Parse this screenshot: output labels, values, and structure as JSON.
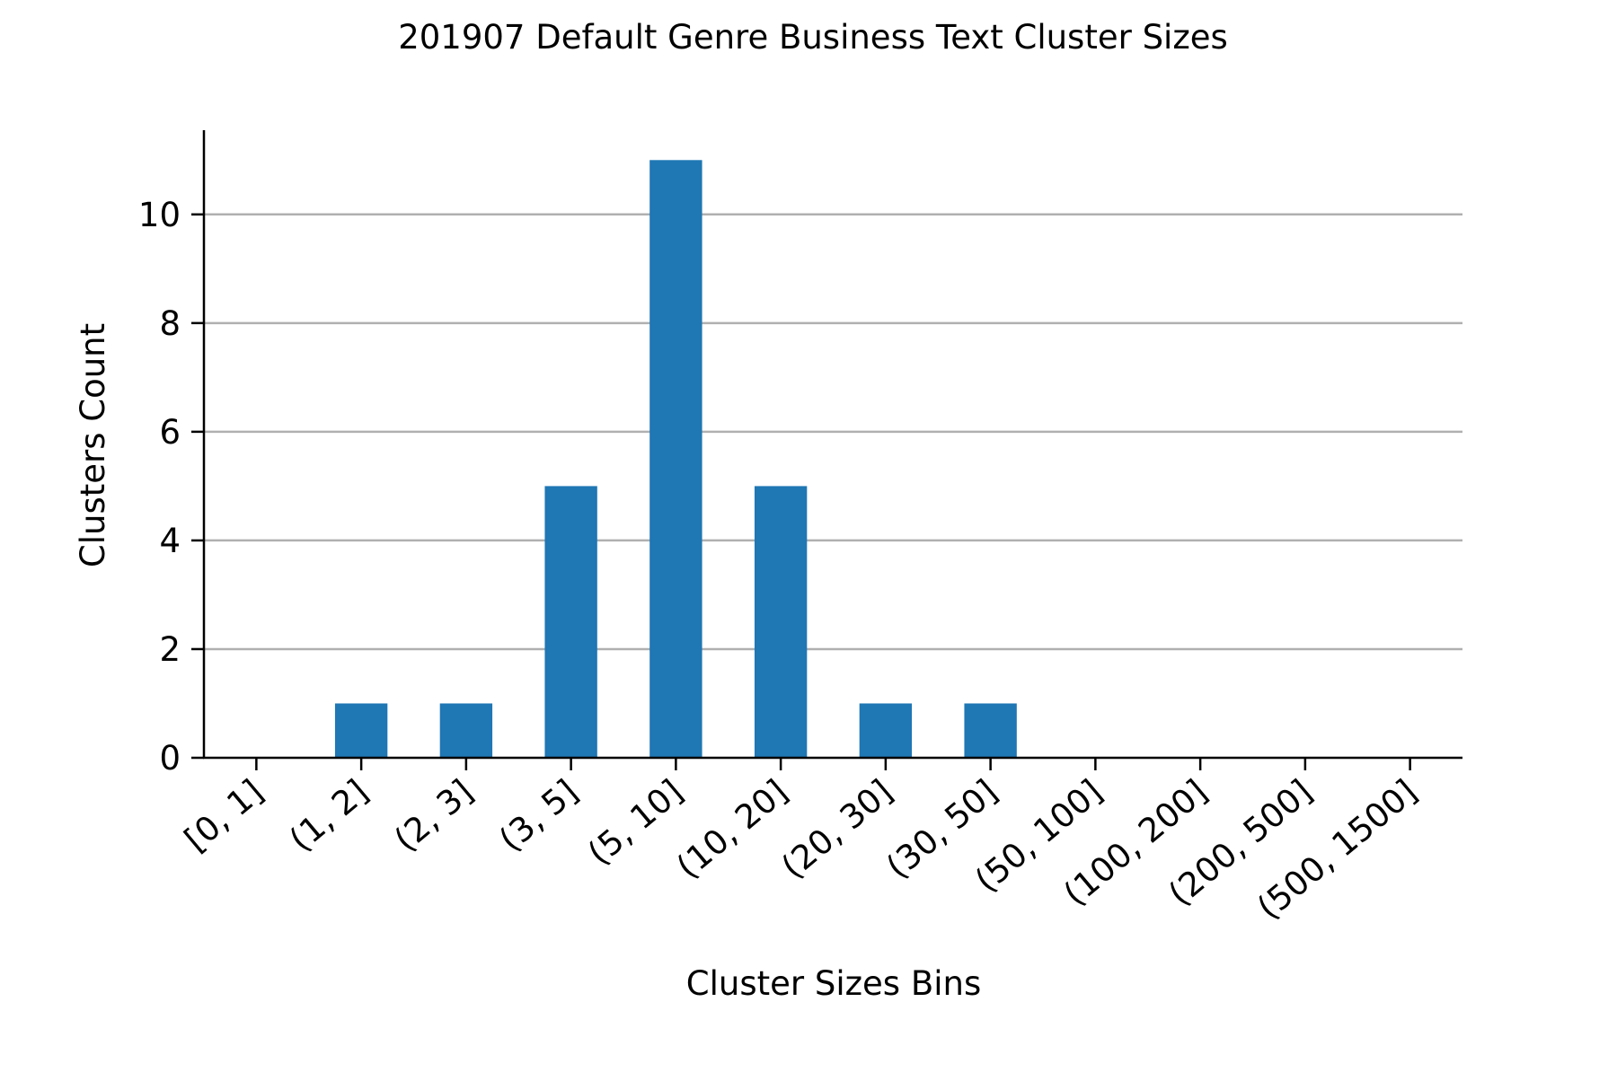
{
  "chart_data": {
    "type": "bar",
    "title": "201907 Default Genre Business Text Cluster Sizes",
    "xlabel": "Cluster Sizes Bins",
    "ylabel": "Clusters Count",
    "categories": [
      "[0, 1]",
      "(1, 2]",
      "(2, 3]",
      "(3, 5]",
      "(5, 10]",
      "(10, 20]",
      "(20, 30]",
      "(30, 50]",
      "(50, 100]",
      "(100, 200]",
      "(200, 500]",
      "(500, 1500]"
    ],
    "values": [
      0,
      1,
      1,
      5,
      11,
      5,
      1,
      1,
      0,
      0,
      0,
      0
    ],
    "ylim": [
      0,
      11.55
    ],
    "yticks": [
      0,
      2,
      4,
      6,
      8,
      10
    ],
    "grid": "horizontal",
    "legend": "none",
    "colors": {
      "bar": "#1f77b4",
      "grid": "#b0b0b0",
      "axis": "#000000"
    }
  }
}
